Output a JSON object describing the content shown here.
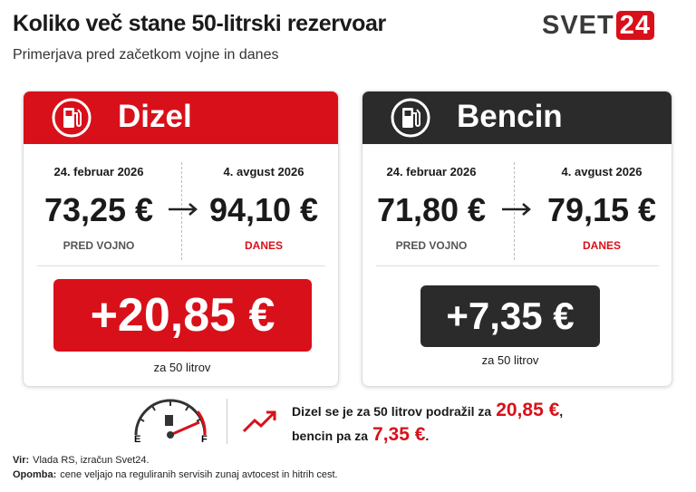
{
  "header": {
    "title": "Koliko več stane 50-litrski rezervoar",
    "subtitle": "Primerjava pred začetkom vojne in danes",
    "logo": {
      "left": "SVET",
      "right": "24"
    }
  },
  "cards": [
    {
      "name": "Dizel",
      "before": {
        "date": "24. februar 2026",
        "price": "73,25 €",
        "label": "PRED VOJNO"
      },
      "after": {
        "date": "4. avgust 2026",
        "price": "94,10 €",
        "label": "DANES"
      },
      "difference": "+20,85 €",
      "note": "za 50 litrov"
    },
    {
      "name": "Bencin",
      "before": {
        "date": "24. februar 2026",
        "price": "71,80 €",
        "label": "PRED VOJNO"
      },
      "after": {
        "date": "4. avgust 2026",
        "price": "79,15 €",
        "label": "DANES"
      },
      "difference": "+7,35 €",
      "note": "za 50 litrov"
    }
  ],
  "gauge": {
    "empty": "E",
    "full": "F"
  },
  "summary": {
    "line1": "Dizel se je za 50 litrov podražil za",
    "line1_value": "20,85 €",
    "line1_end": ",",
    "line2": "bencin pa za",
    "line2_value": "7,35 €",
    "line2_end": "."
  },
  "footer": {
    "source_label": "Vir:",
    "source": "Vlada RS, izračun Svet24.",
    "note_label": "Opomba:",
    "note": "cene veljajo na reguliranih servisih zunaj avtocest in hitrih cest."
  }
}
